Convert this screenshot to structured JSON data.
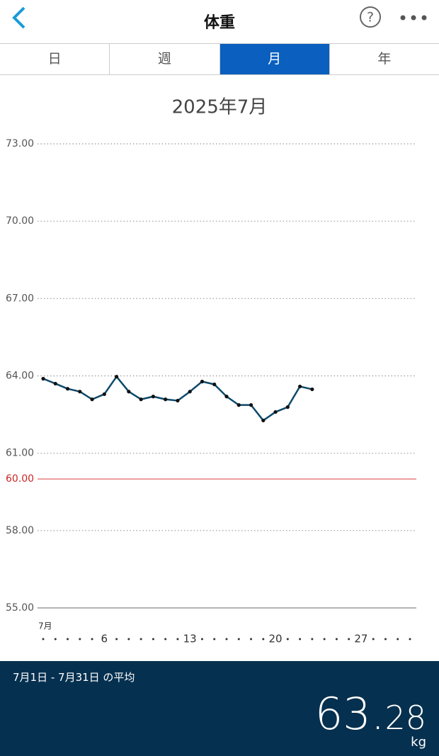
{
  "header": {
    "title": "体重"
  },
  "tabs": [
    "日",
    "週",
    "月",
    "年"
  ],
  "selected_tab": 2,
  "chart_data": {
    "type": "line",
    "title": "2025年7月",
    "color": "#0d4a6b",
    "x": [
      1,
      2,
      3,
      4,
      5,
      6,
      7,
      8,
      9,
      10,
      11,
      12,
      13,
      14,
      15,
      16,
      17,
      18,
      19,
      20,
      21,
      22,
      23
    ],
    "values": [
      63.89,
      63.7,
      63.5,
      63.39,
      63.09,
      63.29,
      63.97,
      63.39,
      63.09,
      63.2,
      63.09,
      63.04,
      63.39,
      63.78,
      63.67,
      63.2,
      62.87,
      62.87,
      62.27,
      62.6,
      62.79,
      63.59,
      63.48
    ],
    "xlim": [
      1,
      31
    ],
    "xticks": [
      6,
      13,
      20,
      27
    ],
    "x_month_label": "7月",
    "ylim": [
      55,
      73
    ],
    "yticks": [
      {
        "value": 73,
        "label": "73.00"
      },
      {
        "value": 70,
        "label": "70.00"
      },
      {
        "value": 67,
        "label": "67.00"
      },
      {
        "value": 64,
        "label": "64.00"
      },
      {
        "value": 61,
        "label": "61.00"
      },
      {
        "value": 58,
        "label": "58.00"
      },
      {
        "value": 55,
        "label": "55.00"
      }
    ],
    "target": {
      "value": 60,
      "label": "60.00",
      "color": "#e57373"
    },
    "grid": true
  },
  "footer": {
    "period": "7月1日 - 7月31日 の平均",
    "value_main": "63.",
    "value_decimal": "28",
    "unit": "kg"
  }
}
